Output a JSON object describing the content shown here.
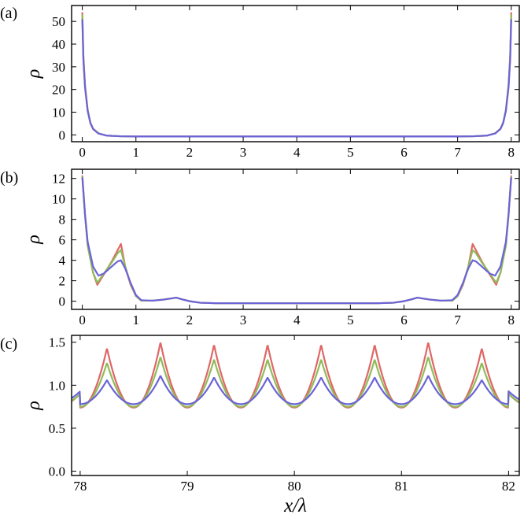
{
  "chart_data": [
    {
      "type": "line",
      "panel_label": "(a)",
      "ylabel": "ρ",
      "xlabel": "",
      "xlim": [
        -0.2,
        8.15
      ],
      "ylim": [
        -3,
        57
      ],
      "xticks": [
        "0",
        "1",
        "2",
        "3",
        "4",
        "5",
        "6",
        "7",
        "8"
      ],
      "yticks": [
        "0",
        "10",
        "20",
        "30",
        "40",
        "50"
      ],
      "series": [
        {
          "color": "#e06666",
          "x": [
            0,
            0.02,
            0.05,
            0.1,
            0.15,
            0.2,
            0.3,
            0.45,
            0.7,
            1.0,
            2,
            3,
            4,
            5,
            6,
            7,
            7.3,
            7.55,
            7.7,
            7.8,
            7.85,
            7.9,
            7.95,
            7.98,
            8.0
          ],
          "values": [
            54,
            35,
            22,
            11,
            5.5,
            2.8,
            0.7,
            -0.3,
            -0.6,
            -0.7,
            -0.7,
            -0.7,
            -0.7,
            -0.7,
            -0.7,
            -0.7,
            -0.6,
            -0.3,
            0.7,
            2.8,
            5.5,
            11,
            22,
            35,
            54
          ]
        },
        {
          "color": "#8fbc5a",
          "x": [
            0,
            0.02,
            0.05,
            0.1,
            0.15,
            0.2,
            0.3,
            0.45,
            0.7,
            1.0,
            2,
            3,
            4,
            5,
            6,
            7,
            7.3,
            7.55,
            7.7,
            7.8,
            7.85,
            7.9,
            7.95,
            7.98,
            8.0
          ],
          "values": [
            53,
            34,
            21.5,
            10.8,
            5.4,
            2.7,
            0.7,
            -0.3,
            -0.6,
            -0.7,
            -0.7,
            -0.7,
            -0.7,
            -0.7,
            -0.7,
            -0.7,
            -0.6,
            -0.3,
            0.7,
            2.7,
            5.4,
            10.8,
            21.5,
            34,
            53
          ]
        },
        {
          "color": "#6b63d8",
          "x": [
            0,
            0.02,
            0.05,
            0.1,
            0.15,
            0.2,
            0.3,
            0.45,
            0.7,
            1.0,
            2,
            3,
            4,
            5,
            6,
            7,
            7.3,
            7.55,
            7.7,
            7.8,
            7.85,
            7.9,
            7.95,
            7.98,
            8.0
          ],
          "values": [
            51,
            33,
            21,
            10.5,
            5.2,
            2.6,
            0.6,
            -0.3,
            -0.6,
            -0.7,
            -0.7,
            -0.7,
            -0.7,
            -0.7,
            -0.7,
            -0.7,
            -0.6,
            -0.3,
            0.6,
            2.6,
            5.2,
            10.5,
            21,
            33,
            51
          ]
        }
      ]
    },
    {
      "type": "line",
      "panel_label": "(b)",
      "ylabel": "ρ",
      "xlabel": "",
      "xlim": [
        -0.2,
        8.15
      ],
      "ylim": [
        -0.8,
        12.9
      ],
      "xticks": [
        "0",
        "1",
        "2",
        "3",
        "4",
        "5",
        "6",
        "7",
        "8"
      ],
      "yticks": [
        "0",
        "2",
        "4",
        "6",
        "8",
        "10",
        "12"
      ],
      "series": [
        {
          "color": "#e06666",
          "x": [
            0,
            0.05,
            0.1,
            0.2,
            0.28,
            0.4,
            0.55,
            0.66,
            0.72,
            0.8,
            0.9,
            1.0,
            1.1,
            1.3,
            1.5,
            1.7,
            1.75,
            1.85,
            2.0,
            2.2,
            2.5,
            3,
            4,
            5,
            5.5,
            5.8,
            6.0,
            6.15,
            6.25,
            6.3,
            6.5,
            6.7,
            6.9,
            7.0,
            7.1,
            7.2,
            7.28,
            7.34,
            7.45,
            7.6,
            7.72,
            7.8,
            7.9,
            7.95,
            8.0
          ],
          "values": [
            12.3,
            8.5,
            5.5,
            2.8,
            1.6,
            2.6,
            3.9,
            5.0,
            5.6,
            3.4,
            1.6,
            0.5,
            0.05,
            0.05,
            0.15,
            0.3,
            0.35,
            0.2,
            0.0,
            -0.15,
            -0.2,
            -0.2,
            -0.2,
            -0.2,
            -0.2,
            -0.15,
            0.0,
            0.2,
            0.35,
            0.3,
            0.15,
            0.05,
            0.05,
            0.5,
            1.6,
            3.4,
            5.6,
            5.0,
            3.9,
            2.6,
            1.6,
            2.8,
            5.5,
            8.5,
            12.3
          ]
        },
        {
          "color": "#8fbc5a",
          "x": [
            0,
            0.05,
            0.1,
            0.2,
            0.28,
            0.4,
            0.55,
            0.66,
            0.72,
            0.8,
            0.9,
            1.0,
            1.1,
            1.3,
            1.5,
            1.7,
            1.75,
            1.85,
            2.0,
            2.2,
            2.5,
            3,
            4,
            5,
            5.5,
            5.8,
            6.0,
            6.15,
            6.25,
            6.3,
            6.5,
            6.7,
            6.9,
            7.0,
            7.1,
            7.2,
            7.28,
            7.34,
            7.45,
            7.6,
            7.72,
            7.8,
            7.9,
            7.95,
            8.0
          ],
          "values": [
            12.2,
            8.4,
            5.4,
            2.8,
            1.8,
            2.7,
            3.8,
            4.7,
            5.0,
            3.4,
            1.7,
            0.5,
            0.05,
            0.05,
            0.15,
            0.3,
            0.35,
            0.2,
            0.0,
            -0.15,
            -0.2,
            -0.2,
            -0.2,
            -0.2,
            -0.2,
            -0.15,
            0.0,
            0.2,
            0.35,
            0.3,
            0.15,
            0.05,
            0.05,
            0.5,
            1.7,
            3.4,
            5.0,
            4.7,
            3.8,
            2.7,
            1.8,
            2.8,
            5.4,
            8.4,
            12.2
          ]
        },
        {
          "color": "#6b63d8",
          "x": [
            0,
            0.05,
            0.1,
            0.2,
            0.3,
            0.4,
            0.55,
            0.66,
            0.72,
            0.8,
            0.9,
            1.0,
            1.1,
            1.3,
            1.5,
            1.7,
            1.75,
            1.85,
            2.0,
            2.2,
            2.5,
            3,
            4,
            5,
            5.5,
            5.8,
            6.0,
            6.15,
            6.25,
            6.3,
            6.5,
            6.7,
            6.9,
            7.0,
            7.1,
            7.2,
            7.28,
            7.34,
            7.45,
            7.6,
            7.7,
            7.8,
            7.9,
            7.95,
            8.0
          ],
          "values": [
            12.1,
            8.5,
            5.8,
            3.4,
            2.5,
            2.7,
            3.4,
            3.9,
            4.0,
            3.2,
            1.8,
            0.6,
            0.1,
            0.05,
            0.15,
            0.3,
            0.35,
            0.2,
            0.0,
            -0.15,
            -0.2,
            -0.2,
            -0.2,
            -0.2,
            -0.2,
            -0.15,
            0.0,
            0.2,
            0.35,
            0.3,
            0.15,
            0.05,
            0.1,
            0.6,
            1.8,
            3.2,
            4.0,
            3.9,
            3.4,
            2.7,
            2.5,
            3.4,
            5.8,
            8.5,
            12.1
          ]
        }
      ]
    },
    {
      "type": "line",
      "panel_label": "(c)",
      "ylabel": "ρ",
      "xlabel": "x/λ",
      "xlim": [
        77.92,
        82.1
      ],
      "ylim": [
        -0.05,
        1.58
      ],
      "xticks": [
        "78",
        "79",
        "80",
        "81",
        "82"
      ],
      "yticks": [
        "0.0",
        "0.5",
        "1.0",
        "1.5"
      ],
      "peaks": [
        78.25,
        78.75,
        79.25,
        79.75,
        80.25,
        80.75,
        81.25,
        81.75
      ],
      "series": [
        {
          "color": "#e06666",
          "peak_values": [
            1.43,
            1.5,
            1.47,
            1.47,
            1.47,
            1.47,
            1.5,
            1.43
          ],
          "min_value": 0.74,
          "edge_value": 0.9
        },
        {
          "color": "#8fbc5a",
          "peak_values": [
            1.26,
            1.33,
            1.3,
            1.3,
            1.3,
            1.3,
            1.33,
            1.26
          ],
          "min_value": 0.75,
          "edge_value": 0.9
        },
        {
          "color": "#6b63d8",
          "peak_values": [
            1.06,
            1.11,
            1.09,
            1.09,
            1.09,
            1.09,
            1.11,
            1.06
          ],
          "min_value": 0.78,
          "edge_value": 0.93
        }
      ]
    }
  ]
}
